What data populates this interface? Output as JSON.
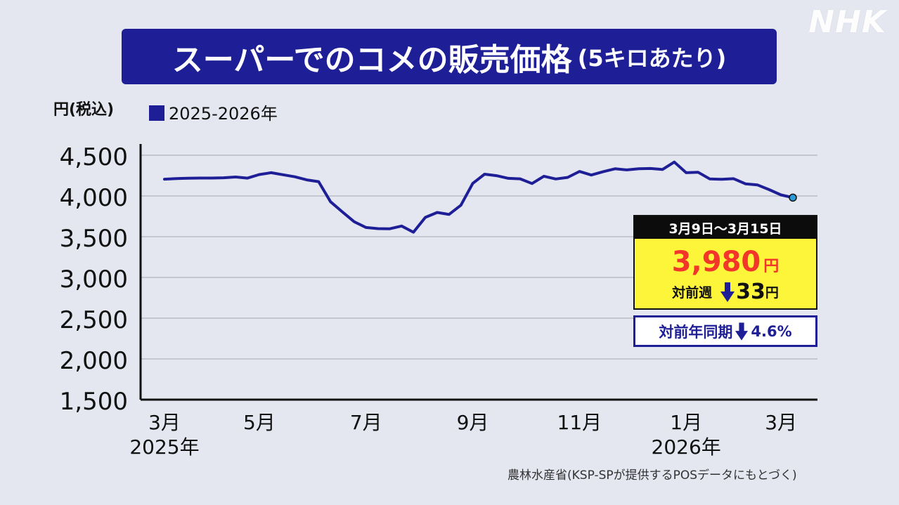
{
  "logo": "NHK",
  "title": {
    "main": "スーパーでのコメの販売価格",
    "sub": "(5キロあたり)"
  },
  "chart_data": {
    "type": "line",
    "ylabel": "円(税込)",
    "ylim": [
      1500,
      4500
    ],
    "yticks": [
      "4,500",
      "4,000",
      "3,500",
      "3,000",
      "2,500",
      "2,000",
      "1,500"
    ],
    "ytick_values": [
      4500,
      4000,
      3500,
      3000,
      2500,
      2000,
      1500
    ],
    "grid": true,
    "legend": "top-left",
    "xticks": [
      {
        "label": "3月",
        "sub": "2025年",
        "week": 0
      },
      {
        "label": "5月",
        "sub": "",
        "week": 8
      },
      {
        "label": "7月",
        "sub": "",
        "week": 17
      },
      {
        "label": "9月",
        "sub": "",
        "week": 26
      },
      {
        "label": "11月",
        "sub": "",
        "week": 35
      },
      {
        "label": "1月",
        "sub": "2026年",
        "week": 44
      },
      {
        "label": "3月",
        "sub": "",
        "week": 52
      }
    ],
    "series": [
      {
        "name": "2025-2026年",
        "color": "#1e1e96",
        "values": [
          4206,
          4214,
          4217,
          4220,
          4220,
          4223,
          4233,
          4219,
          4263,
          4285,
          4260,
          4235,
          4197,
          4176,
          3929,
          3805,
          3684,
          3613,
          3599,
          3597,
          3631,
          3555,
          3737,
          3797,
          3773,
          3886,
          4154,
          4267,
          4249,
          4216,
          4210,
          4153,
          4242,
          4209,
          4228,
          4301,
          4257,
          4298,
          4334,
          4320,
          4334,
          4337,
          4325,
          4416,
          4285,
          4291,
          4209,
          4204,
          4212,
          4149,
          4136,
          4078,
          4013,
          3980
        ]
      }
    ],
    "callout": {
      "period": "3月9日～3月15日",
      "price": "3,980",
      "unit": "円",
      "week_label": "対前週",
      "week_change": "33",
      "yoy_label": "対前年同期",
      "yoy_change": "4.6%"
    }
  },
  "source": "農林水産省(KSP-SPが提供するPOSデータにもとづく)"
}
